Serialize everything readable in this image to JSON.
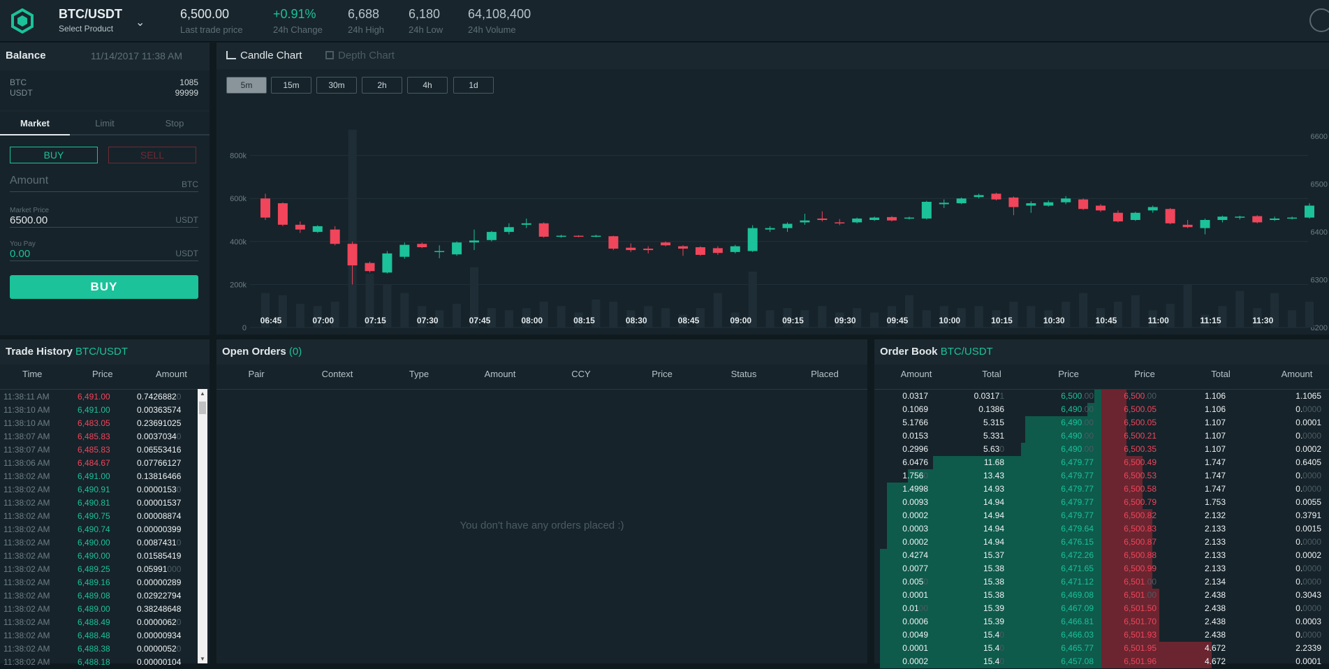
{
  "header": {
    "product_name": "BTC/USDT",
    "product_sub": "Select Product",
    "stats": [
      {
        "value": "6,500.00",
        "label": "Last trade price",
        "color": "#e0e7ea"
      },
      {
        "value": "+0.91%",
        "label": "24h Change",
        "color": "#1bc29a"
      },
      {
        "value": "6,688",
        "label": "24h High",
        "color": "#b8c4ca"
      },
      {
        "value": "6,180",
        "label": "24h Low",
        "color": "#b8c4ca"
      },
      {
        "value": "64,108,400",
        "label": "24h Volume",
        "color": "#b8c4ca"
      }
    ]
  },
  "balance": {
    "title": "Balance",
    "datetime": "11/14/2017 11:38 AM",
    "rows": [
      {
        "ccy": "BTC",
        "amount": "1085"
      },
      {
        "ccy": "USDT",
        "amount": "99999"
      }
    ]
  },
  "order_form": {
    "tabs": [
      "Market",
      "Limit",
      "Stop"
    ],
    "buy_label": "BUY",
    "sell_label": "SELL",
    "amount_placeholder": "Amount",
    "amount_unit": "BTC",
    "market_price_label": "Market Price",
    "market_price_value": "6500.00",
    "market_price_unit": "USDT",
    "you_pay_label": "You Pay",
    "you_pay_value": "0.00",
    "you_pay_unit": "USDT",
    "submit_label": "BUY"
  },
  "chart_tabs": {
    "candle": "Candle Chart",
    "depth": "Depth Chart",
    "timeframes": [
      "5m",
      "15m",
      "30m",
      "2h",
      "4h",
      "1d"
    ],
    "active_timeframe": "5m"
  },
  "chart_data": {
    "type": "candlestick",
    "x_ticks": [
      "06:45",
      "07:00",
      "07:15",
      "07:30",
      "07:45",
      "08:00",
      "08:15",
      "08:30",
      "08:45",
      "09:00",
      "09:15",
      "09:30",
      "09:45",
      "10:00",
      "10:15",
      "10:30",
      "10:45",
      "11:00",
      "11:15",
      "11:30"
    ],
    "volume_ticks": [
      "0",
      "200k",
      "400k",
      "600k",
      "800k"
    ],
    "price_ticks": [
      "6200",
      "6300",
      "6400",
      "6500",
      "6600"
    ],
    "volume_range": [
      0,
      1000000
    ],
    "price_range": [
      6200,
      6650
    ],
    "candles": [
      {
        "o": 6470,
        "c": 6430,
        "h": 6480,
        "l": 6425,
        "v": 160000
      },
      {
        "o": 6460,
        "c": 6415,
        "h": 6462,
        "l": 6412,
        "v": 150000
      },
      {
        "o": 6415,
        "c": 6405,
        "h": 6422,
        "l": 6398,
        "v": 110000
      },
      {
        "o": 6400,
        "c": 6412,
        "h": 6414,
        "l": 6398,
        "v": 100000
      },
      {
        "o": 6405,
        "c": 6375,
        "h": 6412,
        "l": 6372,
        "v": 120000
      },
      {
        "o": 6375,
        "c": 6330,
        "h": 6380,
        "l": 6290,
        "v": 920000
      },
      {
        "o": 6335,
        "c": 6318,
        "h": 6338,
        "l": 6315,
        "v": 250000
      },
      {
        "o": 6315,
        "c": 6355,
        "h": 6360,
        "l": 6313,
        "v": 200000
      },
      {
        "o": 6348,
        "c": 6373,
        "h": 6378,
        "l": 6344,
        "v": 160000
      },
      {
        "o": 6375,
        "c": 6368,
        "h": 6378,
        "l": 6366,
        "v": 100000
      },
      {
        "o": 6358,
        "c": 6360,
        "h": 6372,
        "l": 6345,
        "v": 80000
      },
      {
        "o": 6353,
        "c": 6378,
        "h": 6380,
        "l": 6350,
        "v": 110000
      },
      {
        "o": 6378,
        "c": 6382,
        "h": 6405,
        "l": 6362,
        "v": 280000
      },
      {
        "o": 6383,
        "c": 6400,
        "h": 6402,
        "l": 6380,
        "v": 90000
      },
      {
        "o": 6400,
        "c": 6410,
        "h": 6418,
        "l": 6395,
        "v": 80000
      },
      {
        "o": 6415,
        "c": 6418,
        "h": 6428,
        "l": 6408,
        "v": 90000
      },
      {
        "o": 6418,
        "c": 6390,
        "h": 6420,
        "l": 6388,
        "v": 120000
      },
      {
        "o": 6390,
        "c": 6392,
        "h": 6394,
        "l": 6388,
        "v": 100000
      },
      {
        "o": 6392,
        "c": 6391,
        "h": 6393,
        "l": 6389,
        "v": 70000
      },
      {
        "o": 6391,
        "c": 6392,
        "h": 6394,
        "l": 6389,
        "v": 130000
      },
      {
        "o": 6391,
        "c": 6365,
        "h": 6392,
        "l": 6362,
        "v": 120000
      },
      {
        "o": 6367,
        "c": 6362,
        "h": 6376,
        "l": 6358,
        "v": 80000
      },
      {
        "o": 6365,
        "c": 6362,
        "h": 6370,
        "l": 6355,
        "v": 100000
      },
      {
        "o": 6378,
        "c": 6372,
        "h": 6380,
        "l": 6370,
        "v": 90000
      },
      {
        "o": 6370,
        "c": 6365,
        "h": 6372,
        "l": 6350,
        "v": 60000
      },
      {
        "o": 6368,
        "c": 6352,
        "h": 6370,
        "l": 6350,
        "v": 90000
      },
      {
        "o": 6366,
        "c": 6356,
        "h": 6370,
        "l": 6352,
        "v": 160000
      },
      {
        "o": 6358,
        "c": 6370,
        "h": 6373,
        "l": 6355,
        "v": 70000
      },
      {
        "o": 6360,
        "c": 6408,
        "h": 6414,
        "l": 6358,
        "v": 260000
      },
      {
        "o": 6405,
        "c": 6408,
        "h": 6412,
        "l": 6400,
        "v": 80000
      },
      {
        "o": 6408,
        "c": 6417,
        "h": 6420,
        "l": 6400,
        "v": 90000
      },
      {
        "o": 6420,
        "c": 6424,
        "h": 6438,
        "l": 6415,
        "v": 80000
      },
      {
        "o": 6428,
        "c": 6425,
        "h": 6443,
        "l": 6422,
        "v": 100000
      },
      {
        "o": 6420,
        "c": 6418,
        "h": 6427,
        "l": 6414,
        "v": 70000
      },
      {
        "o": 6420,
        "c": 6428,
        "h": 6430,
        "l": 6418,
        "v": 90000
      },
      {
        "o": 6425,
        "c": 6430,
        "h": 6432,
        "l": 6423,
        "v": 70000
      },
      {
        "o": 6431,
        "c": 6424,
        "h": 6433,
        "l": 6422,
        "v": 100000
      },
      {
        "o": 6428,
        "c": 6430,
        "h": 6432,
        "l": 6426,
        "v": 150000
      },
      {
        "o": 6428,
        "c": 6463,
        "h": 6465,
        "l": 6426,
        "v": 80000
      },
      {
        "o": 6458,
        "c": 6461,
        "h": 6468,
        "l": 6450,
        "v": 100000
      },
      {
        "o": 6460,
        "c": 6470,
        "h": 6472,
        "l": 6458,
        "v": 90000
      },
      {
        "o": 6473,
        "c": 6477,
        "h": 6480,
        "l": 6470,
        "v": 100000
      },
      {
        "o": 6480,
        "c": 6468,
        "h": 6482,
        "l": 6466,
        "v": 80000
      },
      {
        "o": 6472,
        "c": 6452,
        "h": 6474,
        "l": 6435,
        "v": 120000
      },
      {
        "o": 6455,
        "c": 6460,
        "h": 6464,
        "l": 6440,
        "v": 100000
      },
      {
        "o": 6455,
        "c": 6462,
        "h": 6466,
        "l": 6453,
        "v": 80000
      },
      {
        "o": 6462,
        "c": 6470,
        "h": 6475,
        "l": 6458,
        "v": 120000
      },
      {
        "o": 6468,
        "c": 6448,
        "h": 6470,
        "l": 6446,
        "v": 160000
      },
      {
        "o": 6455,
        "c": 6445,
        "h": 6458,
        "l": 6442,
        "v": 90000
      },
      {
        "o": 6440,
        "c": 6422,
        "h": 6445,
        "l": 6420,
        "v": 120000
      },
      {
        "o": 6425,
        "c": 6440,
        "h": 6442,
        "l": 6423,
        "v": 150000
      },
      {
        "o": 6445,
        "c": 6452,
        "h": 6455,
        "l": 6440,
        "v": 80000
      },
      {
        "o": 6448,
        "c": 6418,
        "h": 6450,
        "l": 6416,
        "v": 110000
      },
      {
        "o": 6415,
        "c": 6410,
        "h": 6425,
        "l": 6408,
        "v": 200000
      },
      {
        "o": 6408,
        "c": 6425,
        "h": 6428,
        "l": 6395,
        "v": 60000
      },
      {
        "o": 6425,
        "c": 6432,
        "h": 6434,
        "l": 6420,
        "v": 100000
      },
      {
        "o": 6430,
        "c": 6432,
        "h": 6434,
        "l": 6426,
        "v": 170000
      },
      {
        "o": 6433,
        "c": 6420,
        "h": 6435,
        "l": 6418,
        "v": 90000
      },
      {
        "o": 6425,
        "c": 6428,
        "h": 6432,
        "l": 6423,
        "v": 160000
      },
      {
        "o": 6428,
        "c": 6430,
        "h": 6432,
        "l": 6426,
        "v": 80000
      },
      {
        "o": 6430,
        "c": 6455,
        "h": 6460,
        "l": 6428,
        "v": 120000
      }
    ]
  },
  "trade_history": {
    "title": "Trade History",
    "pair": "BTC/USDT",
    "headers": [
      "Time",
      "Price",
      "Amount"
    ],
    "rows": [
      {
        "time": "11:38:11 AM",
        "price": "6,491.00",
        "side": "sell",
        "amount": "0.7426882",
        "amount_dim": "0"
      },
      {
        "time": "11:38:10 AM",
        "price": "6,491.00",
        "side": "buy",
        "amount": "0.00363574",
        "amount_dim": ""
      },
      {
        "time": "11:38:10 AM",
        "price": "6,483.05",
        "side": "sell",
        "amount": "0.23691025",
        "amount_dim": ""
      },
      {
        "time": "11:38:07 AM",
        "price": "6,485.83",
        "side": "sell",
        "amount": "0.0037034",
        "amount_dim": "0"
      },
      {
        "time": "11:38:07 AM",
        "price": "6,485.83",
        "side": "sell",
        "amount": "0.06553416",
        "amount_dim": ""
      },
      {
        "time": "11:38:06 AM",
        "price": "6,484.67",
        "side": "sell",
        "amount": "0.07766127",
        "amount_dim": ""
      },
      {
        "time": "11:38:02 AM",
        "price": "6,491.00",
        "side": "buy",
        "amount": "0.13816466",
        "amount_dim": ""
      },
      {
        "time": "11:38:02 AM",
        "price": "6,490.91",
        "side": "buy",
        "amount": "0.0000153",
        "amount_dim": "0"
      },
      {
        "time": "11:38:02 AM",
        "price": "6,490.81",
        "side": "buy",
        "amount": "0.00001537",
        "amount_dim": ""
      },
      {
        "time": "11:38:02 AM",
        "price": "6,490.75",
        "side": "buy",
        "amount": "0.00008874",
        "amount_dim": ""
      },
      {
        "time": "11:38:02 AM",
        "price": "6,490.74",
        "side": "buy",
        "amount": "0.00000399",
        "amount_dim": ""
      },
      {
        "time": "11:38:02 AM",
        "price": "6,490.00",
        "side": "buy",
        "amount": "0.0087431",
        "amount_dim": "0"
      },
      {
        "time": "11:38:02 AM",
        "price": "6,490.00",
        "side": "buy",
        "amount": "0.01585419",
        "amount_dim": ""
      },
      {
        "time": "11:38:02 AM",
        "price": "6,489.25",
        "side": "buy",
        "amount": "0.05991",
        "amount_dim": "000"
      },
      {
        "time": "11:38:02 AM",
        "price": "6,489.16",
        "side": "buy",
        "amount": "0.00000289",
        "amount_dim": ""
      },
      {
        "time": "11:38:02 AM",
        "price": "6,489.08",
        "side": "buy",
        "amount": "0.02922794",
        "amount_dim": ""
      },
      {
        "time": "11:38:02 AM",
        "price": "6,489.00",
        "side": "buy",
        "amount": "0.38248648",
        "amount_dim": ""
      },
      {
        "time": "11:38:02 AM",
        "price": "6,488.49",
        "side": "buy",
        "amount": "0.0000062",
        "amount_dim": "0"
      },
      {
        "time": "11:38:02 AM",
        "price": "6,488.48",
        "side": "buy",
        "amount": "0.00000934",
        "amount_dim": ""
      },
      {
        "time": "11:38:02 AM",
        "price": "6,488.38",
        "side": "buy",
        "amount": "0.0000052",
        "amount_dim": "0"
      },
      {
        "time": "11:38:02 AM",
        "price": "6,488.18",
        "side": "buy",
        "amount": "0.00000104",
        "amount_dim": ""
      }
    ]
  },
  "open_orders": {
    "title": "Open Orders",
    "count": "(0)",
    "headers": [
      "Pair",
      "Context",
      "Type",
      "Amount",
      "CCY",
      "Price",
      "Status",
      "Placed"
    ],
    "empty_message": "You don't have any orders placed :)"
  },
  "order_book": {
    "title": "Order Book",
    "pair": "BTC/USDT",
    "headers": [
      "Amount",
      "Total",
      "Price",
      "Price",
      "Total",
      "Amount"
    ],
    "rows": [
      {
        "ba": "0.0317",
        "bad": "",
        "bt": "0.0317",
        "btd": "1",
        "bp": "6,500",
        "bpd": ".00",
        "ap": "6,500",
        "apd": ".00",
        "at": "1.106",
        "aa": "1.1065",
        "aad": "",
        "bdepth": 0.03,
        "adepth": 0.11
      },
      {
        "ba": "0.1069",
        "bad": "",
        "bt": "0.1386",
        "btd": "",
        "bp": "6,490",
        "bpd": ".00",
        "ap": "6,500.05",
        "apd": "",
        "at": "1.106",
        "aa": "0.",
        "aad": "0000",
        "bdepth": 0.06,
        "adepth": 0.11
      },
      {
        "ba": "5.1766",
        "bad": "",
        "bt": "5.315",
        "btd": "",
        "bp": "6,490",
        "bpd": ".00",
        "ap": "6,500.05",
        "apd": "",
        "at": "1.107",
        "aa": "0.0001",
        "aad": "",
        "bdepth": 0.33,
        "adepth": 0.11
      },
      {
        "ba": "0.0153",
        "bad": "",
        "bt": "5.331",
        "btd": "",
        "bp": "6,490",
        "bpd": ".00",
        "ap": "6,500.21",
        "apd": "",
        "at": "1.107",
        "aa": "0.",
        "aad": "0000",
        "bdepth": 0.33,
        "adepth": 0.11
      },
      {
        "ba": "0.2996",
        "bad": "",
        "bt": "5.63",
        "btd": "0",
        "bp": "6,490",
        "bpd": ".00",
        "ap": "6,500.35",
        "apd": "",
        "at": "1.107",
        "aa": "0.0002",
        "aad": "",
        "bdepth": 0.35,
        "adepth": 0.11
      },
      {
        "ba": "6.0476",
        "bad": "",
        "bt": "11.68",
        "btd": "",
        "bp": "6,479.77",
        "bpd": "",
        "ap": "6,500.49",
        "apd": "",
        "at": "1.747",
        "aa": "0.6405",
        "aad": "",
        "bdepth": 0.73,
        "adepth": 0.18
      },
      {
        "ba": "1.756",
        "bad": "0",
        "bt": "13.43",
        "btd": "",
        "bp": "6,479.77",
        "bpd": "",
        "ap": "6,500.53",
        "apd": "",
        "at": "1.747",
        "aa": "0.",
        "aad": "0000",
        "bdepth": 0.84,
        "adepth": 0.18
      },
      {
        "ba": "1.4998",
        "bad": "",
        "bt": "14.93",
        "btd": "",
        "bp": "6,479.77",
        "bpd": "",
        "ap": "6,500.58",
        "apd": "",
        "at": "1.747",
        "aa": "0.",
        "aad": "0000",
        "bdepth": 0.93,
        "adepth": 0.18
      },
      {
        "ba": "0.0093",
        "bad": "",
        "bt": "14.94",
        "btd": "",
        "bp": "6,479.77",
        "bpd": "",
        "ap": "6,500.79",
        "apd": "",
        "at": "1.753",
        "aa": "0.0055",
        "aad": "",
        "bdepth": 0.93,
        "adepth": 0.18
      },
      {
        "ba": "0.0002",
        "bad": "",
        "bt": "14.94",
        "btd": "",
        "bp": "6,479.77",
        "bpd": "",
        "ap": "6,500.82",
        "apd": "",
        "at": "2.132",
        "aa": "0.3791",
        "aad": "",
        "bdepth": 0.93,
        "adepth": 0.22
      },
      {
        "ba": "0.0003",
        "bad": "",
        "bt": "14.94",
        "btd": "",
        "bp": "6,479.64",
        "bpd": "",
        "ap": "6,500.83",
        "apd": "",
        "at": "2.133",
        "aa": "0.0015",
        "aad": "",
        "bdepth": 0.93,
        "adepth": 0.22
      },
      {
        "ba": "0.0002",
        "bad": "",
        "bt": "14.94",
        "btd": "",
        "bp": "6,476.15",
        "bpd": "",
        "ap": "6,500.87",
        "apd": "",
        "at": "2.133",
        "aa": "0.",
        "aad": "0000",
        "bdepth": 0.93,
        "adepth": 0.22
      },
      {
        "ba": "0.4274",
        "bad": "",
        "bt": "15.37",
        "btd": "",
        "bp": "6,472.26",
        "bpd": "",
        "ap": "6,500.88",
        "apd": "",
        "at": "2.133",
        "aa": "0.0002",
        "aad": "",
        "bdepth": 0.96,
        "adepth": 0.22
      },
      {
        "ba": "0.0077",
        "bad": "",
        "bt": "15.38",
        "btd": "",
        "bp": "6,471.65",
        "bpd": "",
        "ap": "6,500.99",
        "apd": "",
        "at": "2.133",
        "aa": "0.",
        "aad": "0000",
        "bdepth": 0.96,
        "adepth": 0.22
      },
      {
        "ba": "0.005",
        "bad": "0",
        "bt": "15.38",
        "btd": "",
        "bp": "6,471.12",
        "bpd": "",
        "ap": "6,501",
        "apd": ".00",
        "at": "2.134",
        "aa": "0.",
        "aad": "0000",
        "bdepth": 0.96,
        "adepth": 0.22
      },
      {
        "ba": "0.0001",
        "bad": "",
        "bt": "15.38",
        "btd": "",
        "bp": "6,469.08",
        "bpd": "",
        "ap": "6,501",
        "apd": ".00",
        "at": "2.438",
        "aa": "0.3043",
        "aad": "",
        "bdepth": 0.96,
        "adepth": 0.25
      },
      {
        "ba": "0.01",
        "bad": "00",
        "bt": "15.39",
        "btd": "",
        "bp": "6,467.09",
        "bpd": "",
        "ap": "6,501.50",
        "apd": "",
        "at": "2.438",
        "aa": "0.",
        "aad": "0000",
        "bdepth": 0.96,
        "adepth": 0.25
      },
      {
        "ba": "0.0006",
        "bad": "",
        "bt": "15.39",
        "btd": "",
        "bp": "6,466.81",
        "bpd": "",
        "ap": "6,501.70",
        "apd": "",
        "at": "2.438",
        "aa": "0.0003",
        "aad": "",
        "bdepth": 0.96,
        "adepth": 0.25
      },
      {
        "ba": "0.0049",
        "bad": "",
        "bt": "15.4",
        "btd": "0",
        "bp": "6,466.03",
        "bpd": "",
        "ap": "6,501.93",
        "apd": "",
        "at": "2.438",
        "aa": "0.",
        "aad": "0000",
        "bdepth": 0.96,
        "adepth": 0.25
      },
      {
        "ba": "0.0001",
        "bad": "",
        "bt": "15.4",
        "btd": "0",
        "bp": "6,465.77",
        "bpd": "",
        "ap": "6,501.95",
        "apd": "",
        "at": "4.672",
        "aa": "2.2339",
        "aad": "",
        "bdepth": 0.96,
        "adepth": 0.48
      },
      {
        "ba": "0.0002",
        "bad": "",
        "bt": "15.4",
        "btd": "0",
        "bp": "6,457.08",
        "bpd": "",
        "ap": "6,501.96",
        "apd": "",
        "at": "4.672",
        "aa": "0.0001",
        "aad": "",
        "bdepth": 0.96,
        "adepth": 0.48
      }
    ]
  },
  "colors": {
    "buy": "#1bc29a",
    "sell": "#f0455b",
    "bg": "#0f1a1f",
    "panel": "#16232a"
  }
}
